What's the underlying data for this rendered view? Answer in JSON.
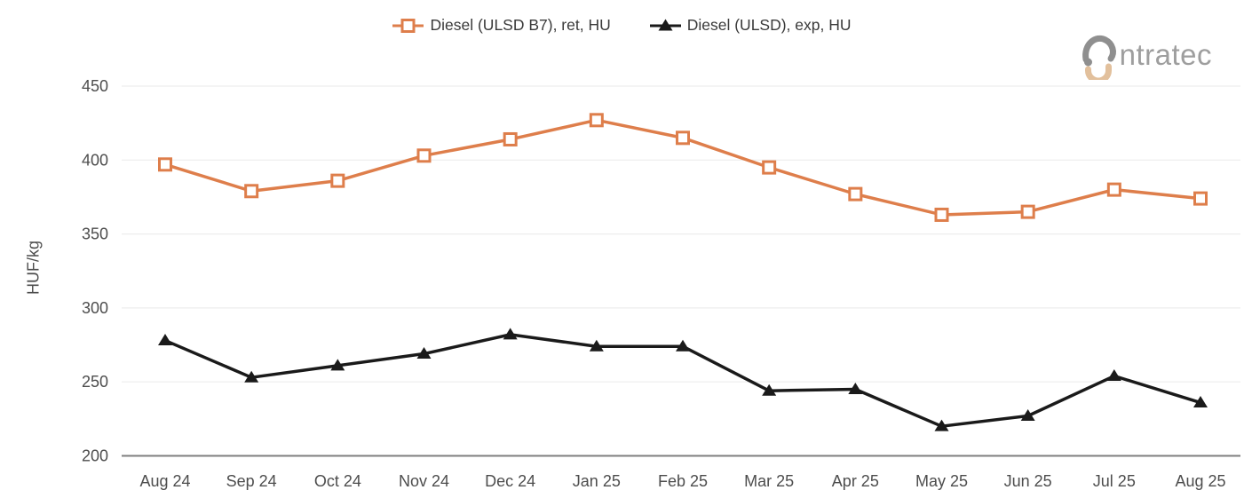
{
  "legend": {
    "items": [
      {
        "label": "Diesel (ULSD B7), ret, HU",
        "marker": "square-hollow"
      },
      {
        "label": "Diesel (ULSD), exp, HU",
        "marker": "triangle-filled"
      }
    ]
  },
  "logo": {
    "text": "ntratec",
    "icon_gray": "#8f8f8f",
    "icon_tan": "#e2c09c",
    "text_color": "#9e9e9e"
  },
  "chart_data": {
    "type": "line",
    "title": "",
    "xlabel": "",
    "ylabel": "HUF/kg",
    "ylim": [
      200,
      450
    ],
    "yticks": [
      200,
      250,
      300,
      350,
      400,
      450
    ],
    "grid": "horizontal",
    "legend_position": "top-center",
    "gridline_color": "#ededed",
    "axis_color": "#7f7f7f",
    "categories": [
      "Aug 24",
      "Sep 24",
      "Oct 24",
      "Nov 24",
      "Dec 24",
      "Jan 25",
      "Feb 25",
      "Mar 25",
      "Apr 25",
      "May 25",
      "Jun 25",
      "Jul 25",
      "Aug 25"
    ],
    "series": [
      {
        "id": "retail",
        "name": "Diesel (ULSD B7), ret, HU",
        "color": "#de7e4b",
        "marker": "square",
        "values": [
          397,
          379,
          386,
          403,
          414,
          427,
          415,
          395,
          377,
          363,
          365,
          380,
          374
        ]
      },
      {
        "id": "export",
        "name": "Diesel (ULSD), exp, HU",
        "color": "#1a1a1a",
        "marker": "triangle",
        "values": [
          278,
          253,
          261,
          269,
          282,
          274,
          274,
          244,
          245,
          220,
          227,
          254,
          236
        ]
      }
    ]
  }
}
